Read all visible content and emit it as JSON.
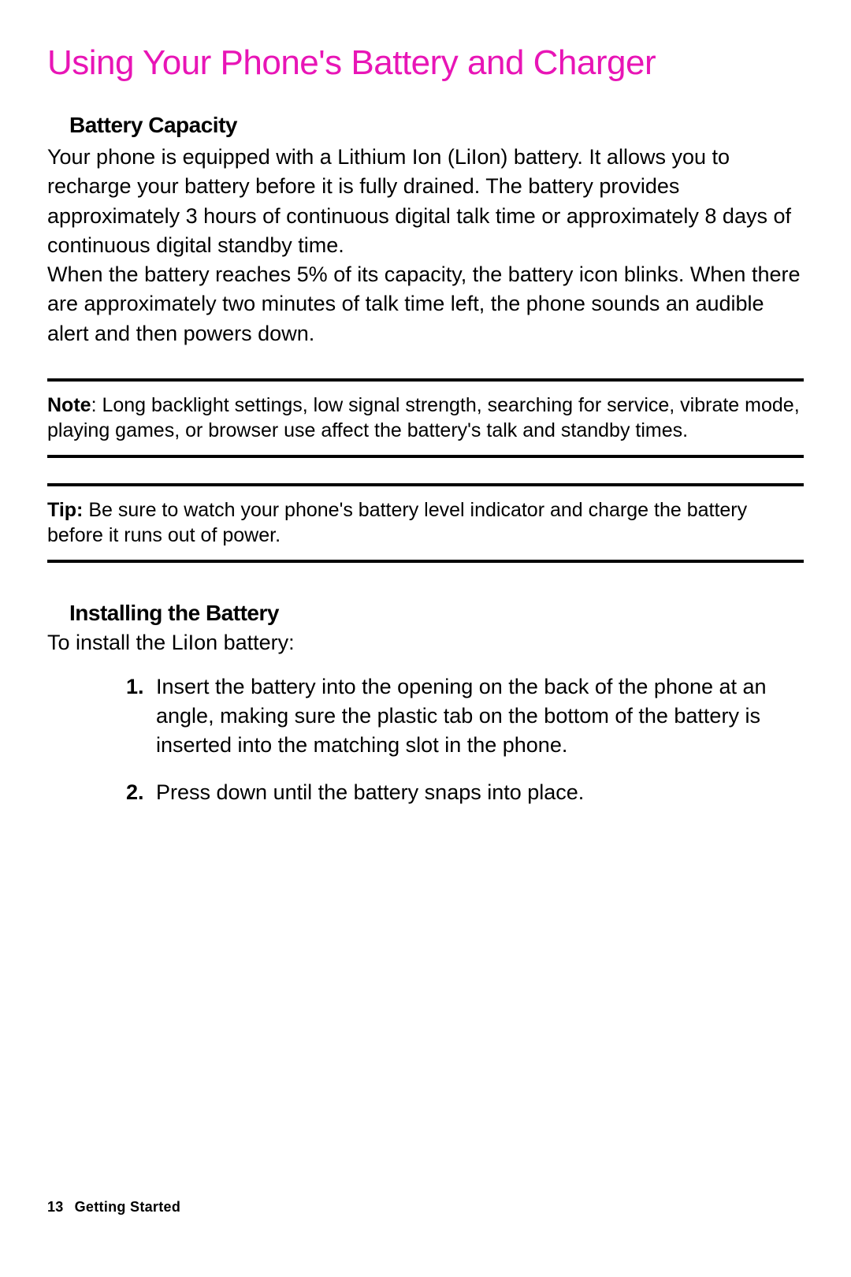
{
  "page": {
    "title": "Using Your Phone's Battery and Charger",
    "title_color": "#e815b6",
    "title_fontsize": 44,
    "background_color": "#ffffff"
  },
  "section1": {
    "heading": "Battery Capacity",
    "heading_fontsize": 28,
    "paragraph1": "Your phone is equipped with a Lithium Ion (LiIon) battery. It allows you to recharge your battery before it is fully drained. The battery provides approximately 3 hours of continuous digital talk time or approximately 8 days of continuous digital standby time.",
    "paragraph2": "When the battery reaches 5% of its capacity, the battery icon blinks. When there are approximately two minutes of talk time left, the phone sounds an audible alert and then powers down."
  },
  "note_callout": {
    "label": "Note",
    "text": ": Long backlight settings, low signal strength, searching for service, vibrate mode, playing games, or browser use affect the battery's talk and standby times.",
    "border_color": "#000000",
    "border_width": 4
  },
  "tip_callout": {
    "label": "Tip:",
    "text": " Be sure to watch your phone's battery level indicator and charge the battery before it runs out of power.",
    "border_color": "#000000",
    "border_width": 4
  },
  "section2": {
    "heading": "Installing the Battery",
    "intro": "To install the LiIon battery:",
    "steps": [
      "Insert the battery into the opening on the back of the phone at an angle, making sure the plastic tab on the bottom of the battery is inserted into the matching slot in the phone.",
      "Press down until the battery snaps into place."
    ]
  },
  "footer": {
    "page_number": "13",
    "section_name": "Getting Started"
  },
  "typography": {
    "body_fontsize": 27,
    "callout_fontsize": 25,
    "footer_fontsize": 18,
    "body_color": "#000000"
  }
}
